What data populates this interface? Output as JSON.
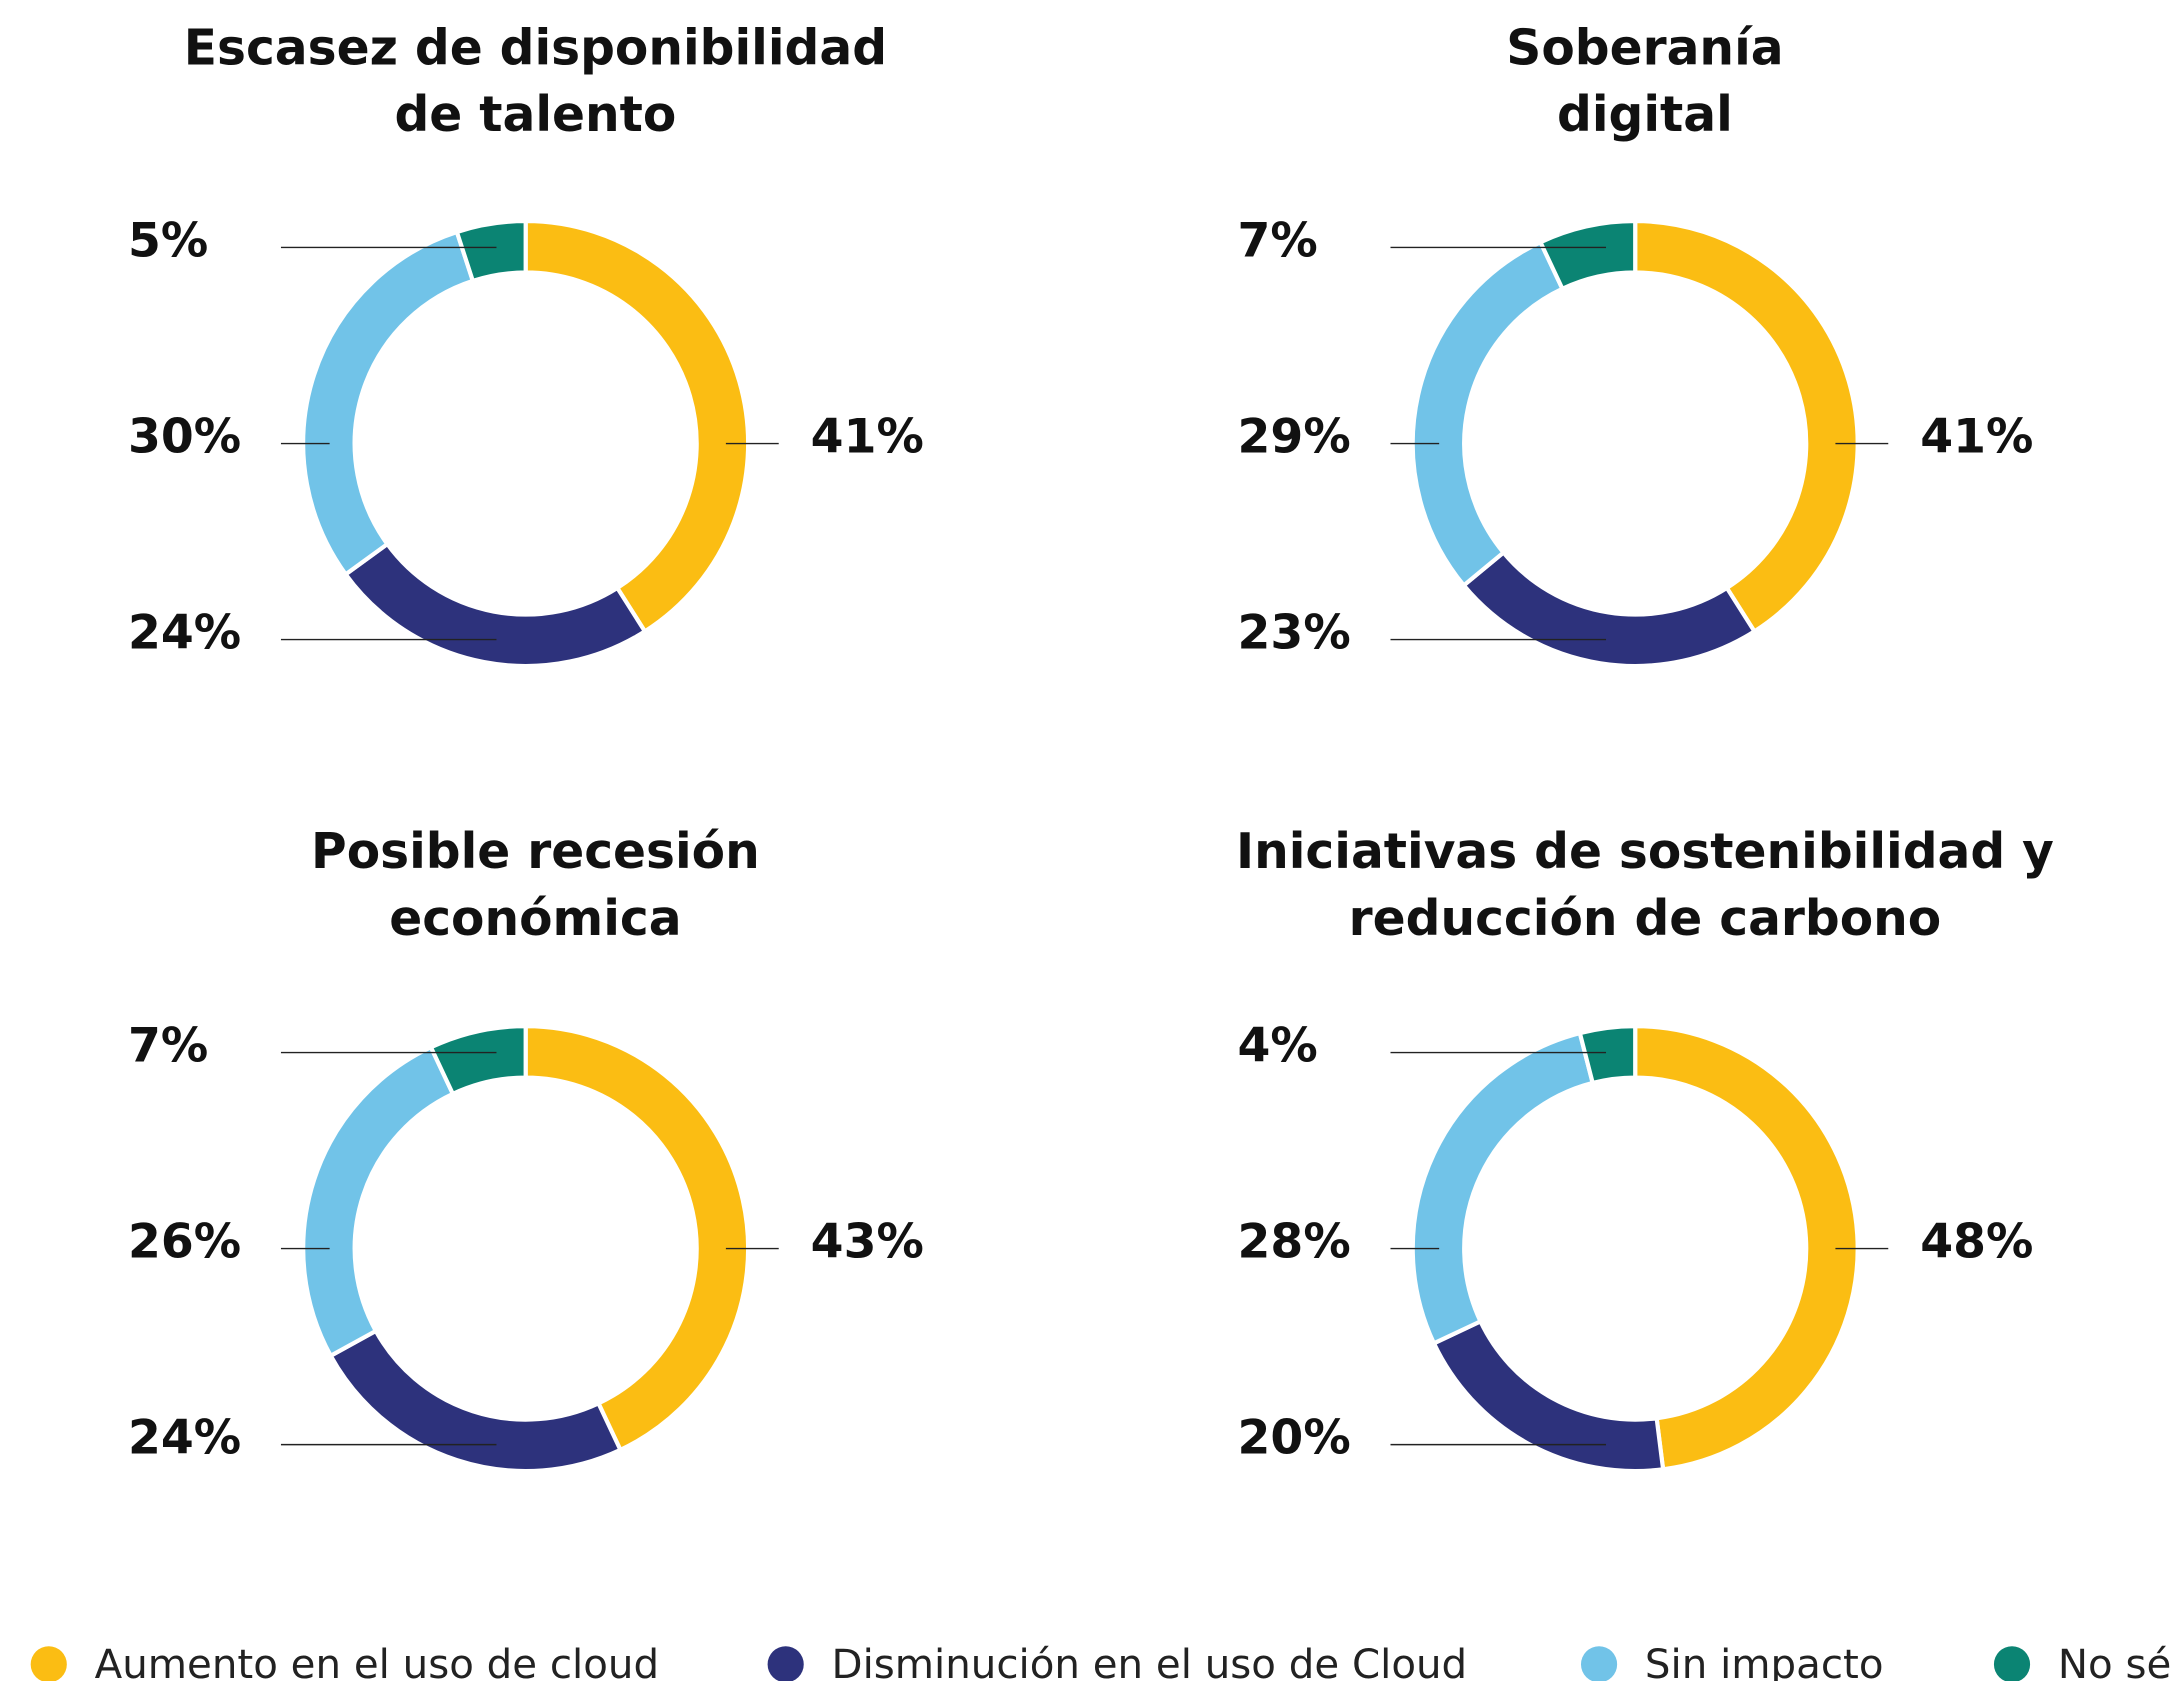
{
  "chart_data": [
    {
      "type": "pie",
      "title": [
        "Escasez de disponibilidad",
        "de talento"
      ],
      "values": [
        41,
        24,
        30,
        5
      ],
      "value_labels": [
        "41%",
        "24%",
        "30%",
        "5%"
      ]
    },
    {
      "type": "pie",
      "title": [
        "Soberanía",
        "digital"
      ],
      "values": [
        41,
        23,
        29,
        7
      ],
      "value_labels": [
        "41%",
        "23%",
        "29%",
        "7%"
      ]
    },
    {
      "type": "pie",
      "title": [
        "Posible recesión",
        "económica"
      ],
      "values": [
        43,
        24,
        26,
        7
      ],
      "value_labels": [
        "43%",
        "24%",
        "26%",
        "7%"
      ]
    },
    {
      "type": "pie",
      "title": [
        "Iniciativas de sostenibilidad y",
        "reducción de carbono"
      ],
      "values": [
        48,
        20,
        28,
        4
      ],
      "value_labels": [
        "48%",
        "20%",
        "28%",
        "4%"
      ]
    }
  ],
  "legend": {
    "names": [
      "Aumento en el uso de cloud",
      "Disminución en el uso de Cloud",
      "Sin impacto",
      "No sé"
    ],
    "colors": [
      "#fbbd13",
      "#2d327c",
      "#71c3e8",
      "#0b8473"
    ]
  }
}
